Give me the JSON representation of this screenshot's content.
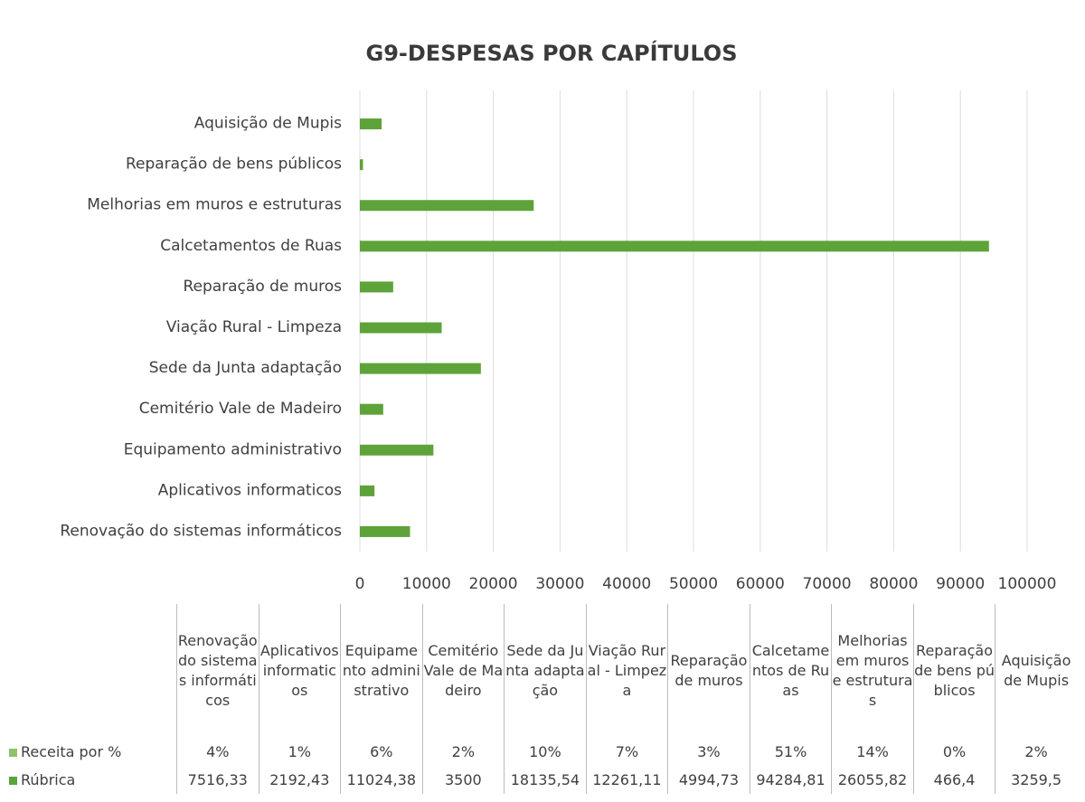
{
  "chart_data": {
    "type": "bar",
    "orientation": "horizontal",
    "title": "G9-DESPESAS POR CAPÍTULOS",
    "categories": [
      "Renovação do sistemas informáticos",
      "Aplicativos informaticos",
      "Equipamento administrativo",
      "Cemitério Vale de Madeiro",
      "Sede da Junta adaptação",
      "Viação Rural - Limpeza",
      "Reparação de muros",
      "Calcetamentos de Ruas",
      "Melhorias em muros e estruturas",
      "Reparação de bens públicos",
      "Aquisição de Mupis"
    ],
    "series": [
      {
        "name": "Receita por %",
        "color": "#8cc46a",
        "values": [
          4,
          1,
          6,
          2,
          10,
          7,
          3,
          51,
          14,
          0,
          2
        ],
        "value_labels": [
          "4%",
          "1%",
          "6%",
          "2%",
          "10%",
          "7%",
          "3%",
          "51%",
          "14%",
          "0%",
          "2%"
        ]
      },
      {
        "name": "Rúbrica",
        "color": "#5da33a",
        "values": [
          7516.33,
          2192.43,
          11024.38,
          3500,
          18135.54,
          12261.11,
          4994.73,
          94284.81,
          26055.82,
          466.4,
          3259.5
        ],
        "value_labels": [
          "7516,33",
          "2192,43",
          "11024,38",
          "3500",
          "18135,54",
          "12261,11",
          "4994,73",
          "94284,81",
          "26055,82",
          "466,4",
          "3259,5"
        ]
      }
    ],
    "xlim": [
      0,
      100000
    ],
    "xticks": [
      0,
      10000,
      20000,
      30000,
      40000,
      50000,
      60000,
      70000,
      80000,
      90000,
      100000
    ],
    "grid": true,
    "data_table": true
  }
}
